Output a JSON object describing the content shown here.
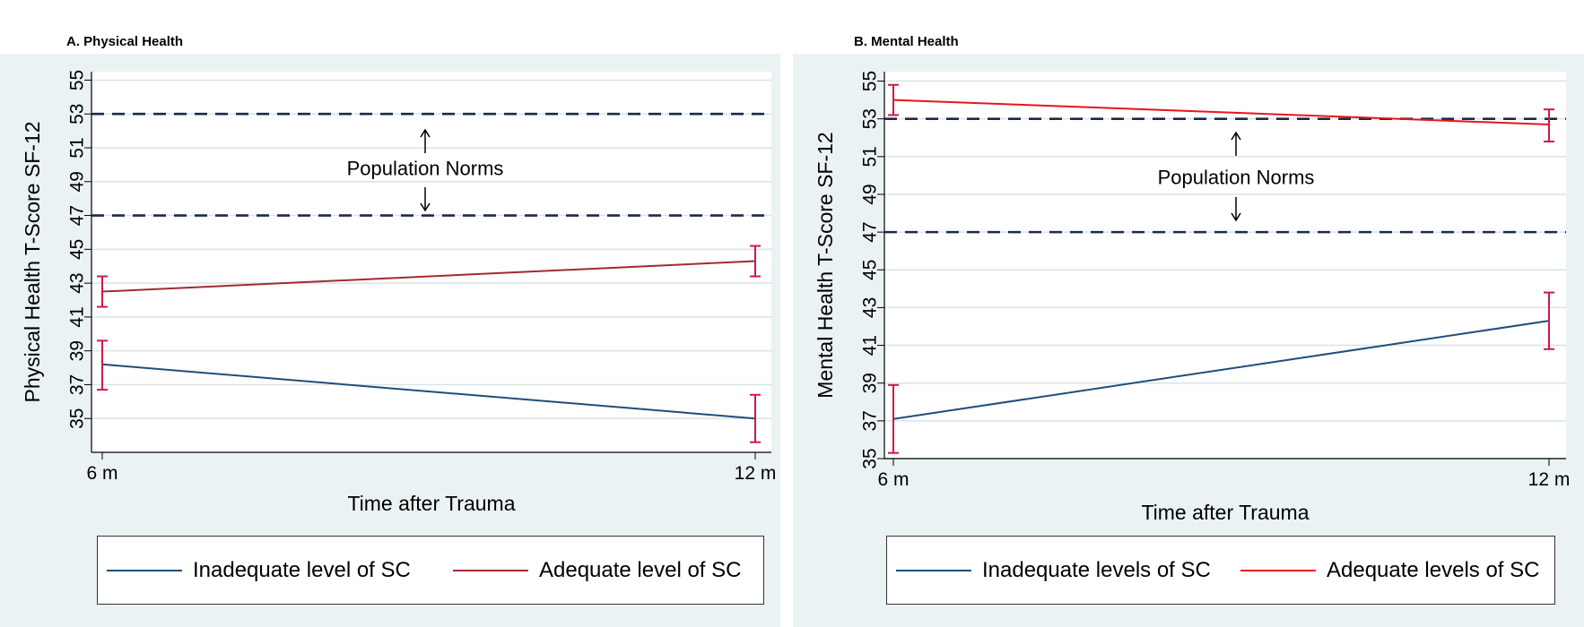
{
  "panels": [
    {
      "title": "A. Physical Health",
      "annotation": "Population Norms",
      "chart_data": {
        "type": "line",
        "x": [
          "6 m",
          "12 m"
        ],
        "xlabel": "Time after Trauma",
        "ylabel": "Physical Health T-Score SF-12",
        "ylim": [
          33,
          55
        ],
        "yticks": [
          35,
          37,
          39,
          41,
          43,
          45,
          47,
          49,
          51,
          53,
          55
        ],
        "grid": true,
        "reference_lines": [
          47,
          53
        ],
        "series": [
          {
            "name": "Inadequate level of SC",
            "color": "#1f4e79",
            "values": [
              38.2,
              35.0
            ],
            "ci_low": [
              36.7,
              33.6
            ],
            "ci_high": [
              39.6,
              36.4
            ]
          },
          {
            "name": "Adequate level of SC",
            "color": "#a32a32",
            "values": [
              42.5,
              44.3
            ],
            "ci_low": [
              41.6,
              43.4
            ],
            "ci_high": [
              43.4,
              45.2
            ]
          }
        ]
      }
    },
    {
      "title": "B. Mental Health",
      "annotation": "Population Norms",
      "chart_data": {
        "type": "line",
        "x": [
          "6 m",
          "12 m"
        ],
        "xlabel": "Time after Trauma",
        "ylabel": "Mental Health T-Score SF-12",
        "ylim": [
          35,
          55.5
        ],
        "yticks": [
          35,
          37,
          39,
          41,
          43,
          45,
          47,
          49,
          51,
          53,
          55
        ],
        "grid": true,
        "reference_lines": [
          47,
          53
        ],
        "series": [
          {
            "name": "Inadequate levels of SC",
            "color": "#1f4e79",
            "values": [
              37.1,
              42.3
            ],
            "ci_low": [
              35.3,
              40.8
            ],
            "ci_high": [
              38.9,
              43.8
            ]
          },
          {
            "name": "Adequate levels of SC",
            "color": "#e8141e",
            "values": [
              54.0,
              52.7
            ],
            "ci_low": [
              53.2,
              51.8
            ],
            "ci_high": [
              54.8,
              53.5
            ]
          }
        ]
      }
    }
  ],
  "colors": {
    "panel_background": "#eaf2f3",
    "error_bar": "#d1184a",
    "reference_line": "#1a2a4a",
    "grid": "#d9e3e6"
  }
}
